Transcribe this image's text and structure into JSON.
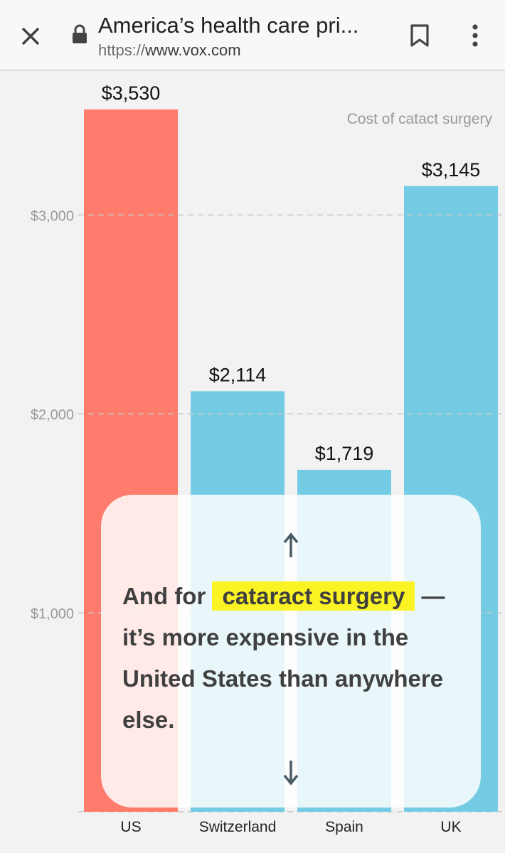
{
  "browser": {
    "page_title": "America’s health care pri...",
    "url_scheme": "https://",
    "url_host": "www.vox.com",
    "icons": [
      "close-icon",
      "lock-icon",
      "bookmark-icon",
      "more-vert-icon"
    ]
  },
  "chart_data": {
    "type": "bar",
    "title": "Cost of catact surgery",
    "categories": [
      "US",
      "Switzerland",
      "Spain",
      "UK"
    ],
    "values": [
      3530,
      2114,
      1719,
      3145
    ],
    "value_labels": [
      "$3,530",
      "$2,114",
      "$1,719",
      "$3,145"
    ],
    "y_ticks": [
      1000,
      2000,
      3000
    ],
    "y_tick_labels": [
      "$1,000",
      "$2,000",
      "$3,000"
    ],
    "ylim": [
      0,
      3530
    ],
    "grid": true,
    "colors": [
      "#ff7b6b",
      "#74cce4",
      "#74cce4",
      "#74cce4"
    ]
  },
  "card": {
    "text_before": "And for ",
    "highlight": "cataract surgery",
    "text_after": " — it’s more expensive in the United States than anywhere else.",
    "highlight_color": "#fbf324",
    "icons": [
      "arrow-up-icon",
      "arrow-down-icon"
    ]
  }
}
